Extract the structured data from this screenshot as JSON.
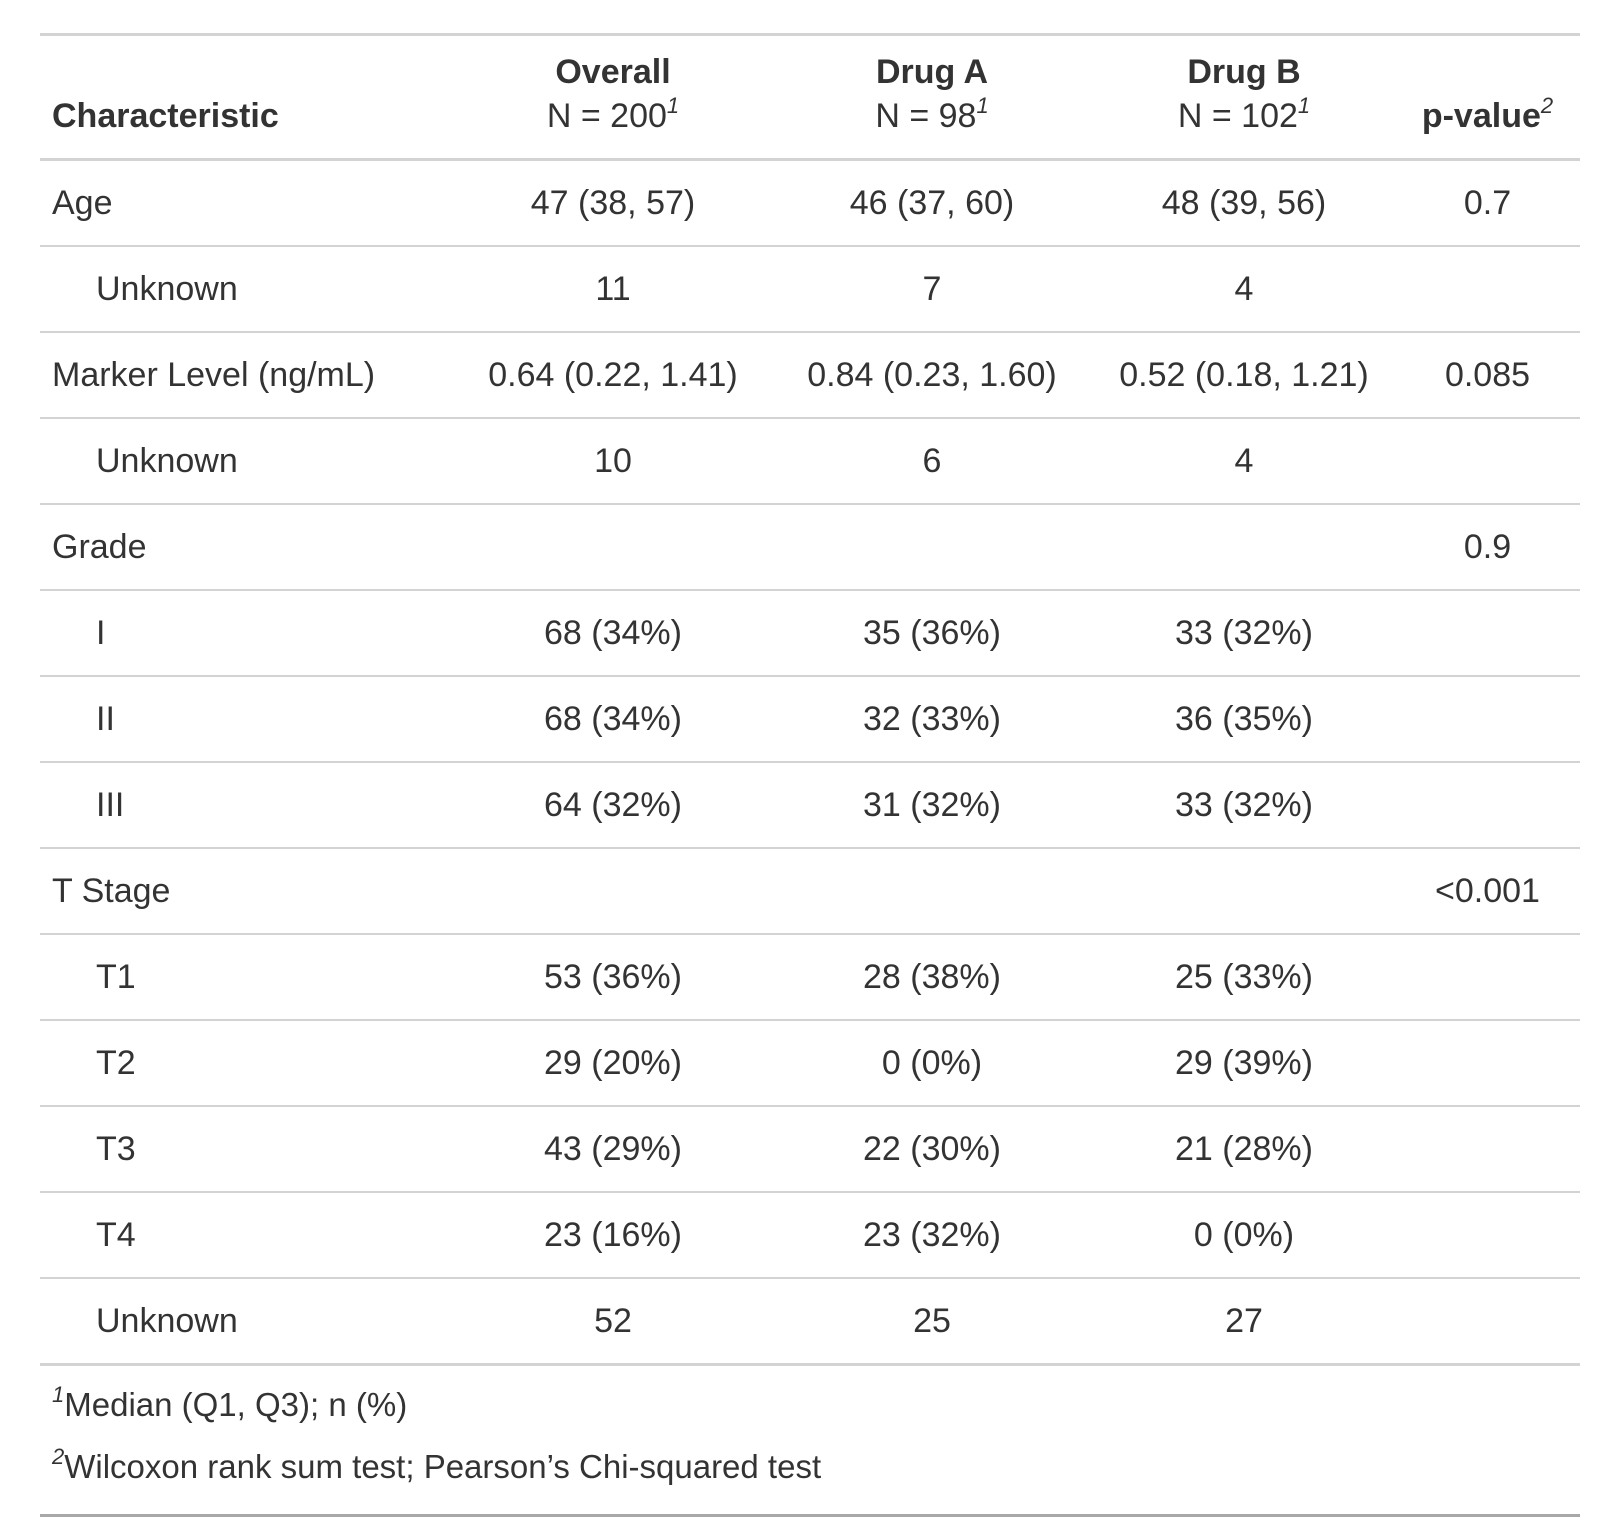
{
  "table": {
    "columns": [
      {
        "label": "Characteristic"
      },
      {
        "label": "Overall",
        "n": "N = 200",
        "mark": "1"
      },
      {
        "label": "Drug A",
        "n": "N = 98",
        "mark": "1"
      },
      {
        "label": "Drug B",
        "n": "N = 102",
        "mark": "1"
      },
      {
        "label": "p-value",
        "mark": "2"
      }
    ],
    "rows": [
      {
        "label": "Age",
        "indent": false,
        "cells": [
          "47 (38, 57)",
          "46 (37, 60)",
          "48 (39, 56)",
          "0.7"
        ]
      },
      {
        "label": "Unknown",
        "indent": true,
        "cells": [
          "11",
          "7",
          "4",
          null
        ]
      },
      {
        "label": "Marker Level (ng/mL)",
        "indent": false,
        "cells": [
          "0.64 (0.22, 1.41)",
          "0.84 (0.23, 1.60)",
          "0.52 (0.18, 1.21)",
          "0.085"
        ]
      },
      {
        "label": "Unknown",
        "indent": true,
        "cells": [
          "10",
          "6",
          "4",
          null
        ]
      },
      {
        "label": "Grade",
        "indent": false,
        "cells": [
          null,
          null,
          null,
          "0.9"
        ]
      },
      {
        "label": "I",
        "indent": true,
        "cells": [
          "68 (34%)",
          "35 (36%)",
          "33 (32%)",
          null
        ]
      },
      {
        "label": "II",
        "indent": true,
        "cells": [
          "68 (34%)",
          "32 (33%)",
          "36 (35%)",
          null
        ]
      },
      {
        "label": "III",
        "indent": true,
        "cells": [
          "64 (32%)",
          "31 (32%)",
          "33 (32%)",
          null
        ]
      },
      {
        "label": "T Stage",
        "indent": false,
        "cells": [
          null,
          null,
          null,
          "<0.001"
        ]
      },
      {
        "label": "T1",
        "indent": true,
        "cells": [
          "53 (36%)",
          "28 (38%)",
          "25 (33%)",
          null
        ]
      },
      {
        "label": "T2",
        "indent": true,
        "cells": [
          "29 (20%)",
          "0 (0%)",
          "29 (39%)",
          null
        ]
      },
      {
        "label": "T3",
        "indent": true,
        "cells": [
          "43 (29%)",
          "22 (30%)",
          "21 (28%)",
          null
        ]
      },
      {
        "label": "T4",
        "indent": true,
        "cells": [
          "23 (16%)",
          "23 (32%)",
          "0 (0%)",
          null
        ]
      },
      {
        "label": "Unknown",
        "indent": true,
        "cells": [
          "52",
          "25",
          "27",
          null
        ]
      }
    ],
    "footnotes": [
      {
        "mark": "1",
        "text": "Median (Q1, Q3); n (%)"
      },
      {
        "mark": "2",
        "text": "Wilcoxon rank sum test; Pearson’s Chi-squared test"
      }
    ]
  }
}
